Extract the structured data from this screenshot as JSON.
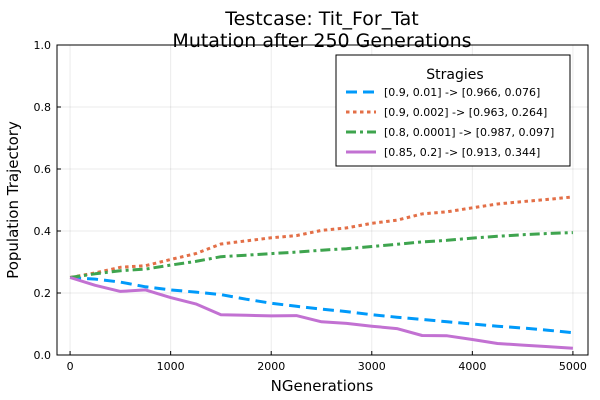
{
  "chart_data": {
    "type": "line",
    "title_line1": "Testcase: Tit_For_Tat",
    "title_line2": "Mutation after 250 Generations",
    "xlabel": "NGenerations",
    "ylabel": "Population Trajectory",
    "xlim": [
      -130,
      5150
    ],
    "ylim": [
      0,
      1
    ],
    "xticks": [
      0,
      1000,
      2000,
      3000,
      4000,
      5000
    ],
    "yticks": [
      0.0,
      0.2,
      0.4,
      0.6,
      0.8,
      1.0
    ],
    "xtick_labels": [
      "0",
      "1000",
      "2000",
      "3000",
      "4000",
      "5000"
    ],
    "ytick_labels": [
      "0.0",
      "0.2",
      "0.4",
      "0.6",
      "0.8",
      "1.0"
    ],
    "grid": true,
    "legend": {
      "title": "Stragies",
      "placement": "top-right"
    },
    "series": [
      {
        "name": "[0.9, 0.01] -> [0.966, 0.076]",
        "color": "#009AFA",
        "dash": "dashed",
        "x": [
          0,
          250,
          500,
          750,
          1000,
          1250,
          1500,
          1750,
          2000,
          2250,
          2500,
          2750,
          3000,
          3250,
          3500,
          3750,
          4000,
          4250,
          4500,
          4750,
          5000
        ],
        "y": [
          0.25,
          0.245,
          0.235,
          0.22,
          0.21,
          0.203,
          0.195,
          0.18,
          0.167,
          0.157,
          0.148,
          0.14,
          0.13,
          0.122,
          0.115,
          0.107,
          0.1,
          0.093,
          0.087,
          0.08,
          0.072
        ]
      },
      {
        "name": "[0.9, 0.002] -> [0.963, 0.264]",
        "color": "#E36F47",
        "dash": "dotted",
        "x": [
          0,
          250,
          500,
          750,
          1000,
          1250,
          1500,
          1750,
          2000,
          2250,
          2500,
          2750,
          3000,
          3250,
          3500,
          3750,
          4000,
          4250,
          4500,
          4750,
          5000
        ],
        "y": [
          0.25,
          0.265,
          0.283,
          0.288,
          0.308,
          0.327,
          0.358,
          0.368,
          0.378,
          0.385,
          0.402,
          0.41,
          0.425,
          0.435,
          0.455,
          0.462,
          0.475,
          0.487,
          0.495,
          0.502,
          0.51
        ]
      },
      {
        "name": "[0.8, 0.0001] -> [0.987, 0.097]",
        "color": "#3EA44E",
        "dash": "dashdot",
        "x": [
          0,
          250,
          500,
          750,
          1000,
          1250,
          1500,
          1750,
          2000,
          2250,
          2500,
          2750,
          3000,
          3250,
          3500,
          3750,
          4000,
          4250,
          4500,
          4750,
          5000
        ],
        "y": [
          0.25,
          0.262,
          0.272,
          0.277,
          0.29,
          0.302,
          0.317,
          0.322,
          0.327,
          0.332,
          0.338,
          0.343,
          0.35,
          0.357,
          0.365,
          0.37,
          0.377,
          0.383,
          0.388,
          0.392,
          0.395
        ]
      },
      {
        "name": "[0.85, 0.2] -> [0.913, 0.344]",
        "color": "#C271D2",
        "dash": "solid",
        "x": [
          0,
          250,
          500,
          750,
          1000,
          1250,
          1500,
          1750,
          2000,
          2250,
          2500,
          2750,
          3000,
          3250,
          3500,
          3750,
          4000,
          4250,
          4500,
          4750,
          5000
        ],
        "y": [
          0.25,
          0.225,
          0.205,
          0.21,
          0.185,
          0.165,
          0.13,
          0.128,
          0.126,
          0.127,
          0.107,
          0.102,
          0.093,
          0.085,
          0.063,
          0.062,
          0.05,
          0.037,
          0.032,
          0.027,
          0.022
        ]
      }
    ]
  }
}
